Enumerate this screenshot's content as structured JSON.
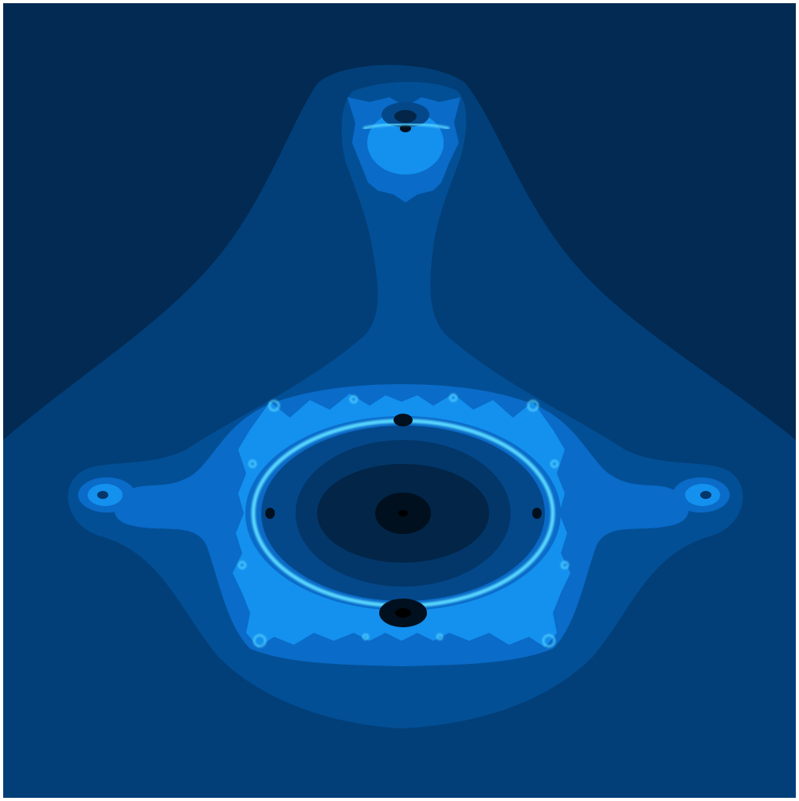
{
  "image": {
    "kind": "fractal-render",
    "palette": {
      "background": "#022a52",
      "band_1": "#023f78",
      "band_2": "#034f95",
      "band_3": "#0a6bc8",
      "band_4": "#1490ee",
      "highlight": "#5ad8ff",
      "core_ring_1": "#04488a",
      "core_ring_2": "#033769",
      "core_ring_3": "#022548",
      "core_center": "#00101f"
    }
  }
}
